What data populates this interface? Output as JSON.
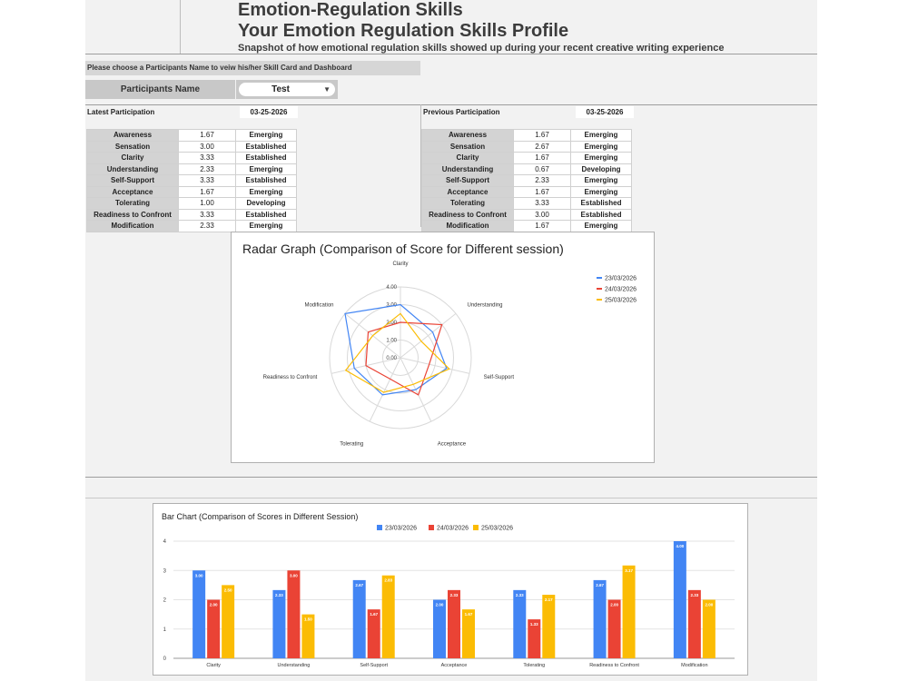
{
  "header": {
    "title": "Emotion-Regulation Skills",
    "profile_title": "Your Emotion Regulation Skills Profile",
    "subtitle": "Snapshot of how emotional regulation skills showed up during your recent creative writing experience"
  },
  "selector": {
    "prompt": "Please choose a Participants Name to veiw his/her Skill Card and Dashboard",
    "label": "Participants Name",
    "value": "Test"
  },
  "latest": {
    "label": "Latest Participation",
    "date": "03-25-2026",
    "rows": [
      {
        "skill": "Awareness",
        "score": "1.67",
        "level": "Emerging"
      },
      {
        "skill": "Sensation",
        "score": "3.00",
        "level": "Established"
      },
      {
        "skill": "Clarity",
        "score": "3.33",
        "level": "Established"
      },
      {
        "skill": "Understanding",
        "score": "2.33",
        "level": "Emerging"
      },
      {
        "skill": "Self-Support",
        "score": "3.33",
        "level": "Established"
      },
      {
        "skill": "Acceptance",
        "score": "1.67",
        "level": "Emerging"
      },
      {
        "skill": "Tolerating",
        "score": "1.00",
        "level": "Developing"
      },
      {
        "skill": "Readiness to Confront",
        "score": "3.33",
        "level": "Established"
      },
      {
        "skill": "Modification",
        "score": "2.33",
        "level": "Emerging"
      }
    ]
  },
  "previous": {
    "label": "Previous Participation",
    "date": "03-25-2026",
    "rows": [
      {
        "skill": "Awareness",
        "score": "1.67",
        "level": "Emerging"
      },
      {
        "skill": "Sensation",
        "score": "2.67",
        "level": "Emerging"
      },
      {
        "skill": "Clarity",
        "score": "1.67",
        "level": "Emerging"
      },
      {
        "skill": "Understanding",
        "score": "0.67",
        "level": "Developing"
      },
      {
        "skill": "Self-Support",
        "score": "2.33",
        "level": "Emerging"
      },
      {
        "skill": "Acceptance",
        "score": "1.67",
        "level": "Emerging"
      },
      {
        "skill": "Tolerating",
        "score": "3.33",
        "level": "Established"
      },
      {
        "skill": "Readiness to Confront",
        "score": "3.00",
        "level": "Established"
      },
      {
        "skill": "Modification",
        "score": "1.67",
        "level": "Emerging"
      }
    ]
  },
  "colors": {
    "series": [
      "#4285f4",
      "#ea4335",
      "#fbbc04"
    ]
  },
  "chart_data": [
    {
      "type": "radar",
      "title": "Radar Graph (Comparison of Score for Different session)",
      "categories": [
        "Clarity",
        "Understanding",
        "Self-Support",
        "Acceptance",
        "Tolerating",
        "Readiness to Confront",
        "Modification"
      ],
      "radial_ticks": [
        "0.00",
        "1.00",
        "2.00",
        "3.00",
        "4.00"
      ],
      "rlim": [
        0,
        4
      ],
      "legend_position": "right",
      "series": [
        {
          "name": "23/03/2026",
          "values": [
            3.0,
            2.33,
            2.67,
            2.0,
            2.33,
            2.67,
            4.0
          ]
        },
        {
          "name": "24/03/2026",
          "values": [
            2.0,
            3.0,
            1.67,
            2.33,
            1.33,
            2.0,
            2.33
          ]
        },
        {
          "name": "25/03/2026",
          "values": [
            2.5,
            1.5,
            2.83,
            1.67,
            2.17,
            3.17,
            2.0
          ]
        }
      ]
    },
    {
      "type": "bar",
      "title": "Bar Chart (Comparison of Scores in Different Session)",
      "categories": [
        "Clarity",
        "Understanding",
        "Self-Support",
        "Acceptance",
        "Tolerating",
        "Readiness to Confront",
        "Modification"
      ],
      "yticks": [
        "0",
        "1",
        "2",
        "3",
        "4"
      ],
      "ylim": [
        0,
        4
      ],
      "legend_position": "top",
      "series": [
        {
          "name": "23/03/2026",
          "values": [
            3.0,
            2.33,
            2.67,
            2.0,
            2.33,
            2.67,
            4.0
          ],
          "labels": [
            "3.00",
            "2.33",
            "2.67",
            "2.00",
            "2.33",
            "2.67",
            "4.00"
          ]
        },
        {
          "name": "24/03/2026",
          "values": [
            2.0,
            3.0,
            1.67,
            2.33,
            1.33,
            2.0,
            2.33
          ],
          "labels": [
            "2.00",
            "3.00",
            "1.67",
            "2.33",
            "1.33",
            "2.00",
            "2.33"
          ]
        },
        {
          "name": "25/03/2026",
          "values": [
            2.5,
            1.5,
            2.83,
            1.67,
            2.17,
            3.17,
            2.0
          ],
          "labels": [
            "2.50",
            "1.50",
            "2.83",
            "1.67",
            "2.17",
            "3.17",
            "2.00"
          ]
        }
      ]
    }
  ]
}
